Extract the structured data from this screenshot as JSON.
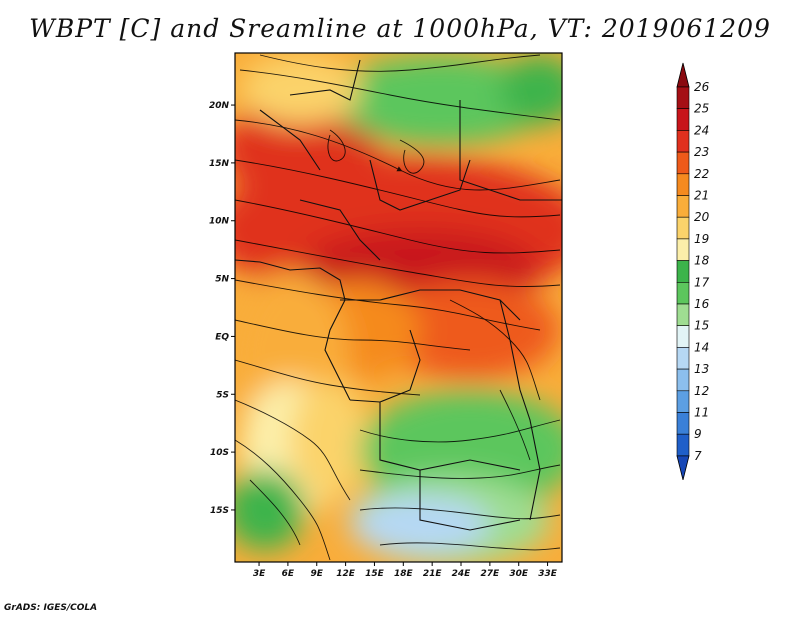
{
  "title": "WBPT [C] and Sreamline at 1000hPa, VT: 2019061209",
  "credit": "GrADS: IGES/COLA",
  "map": {
    "lat_labels": [
      "20N",
      "15N",
      "10N",
      "5N",
      "EQ",
      "5S",
      "10S",
      "15S"
    ],
    "lat_values": [
      20,
      15,
      10,
      5,
      0,
      -5,
      -10,
      -15
    ],
    "lon_labels": [
      "3E",
      "6E",
      "9E",
      "12E",
      "15E",
      "18E",
      "21E",
      "24E",
      "27E",
      "30E",
      "33E"
    ],
    "lon_values": [
      3,
      6,
      9,
      12,
      15,
      18,
      21,
      24,
      27,
      30,
      33
    ],
    "lon_range": [
      0.5,
      34.5
    ],
    "lat_range": [
      -19.5,
      24.5
    ]
  },
  "colorbar": {
    "labels": [
      "26",
      "25",
      "24",
      "23",
      "22",
      "21",
      "20",
      "19",
      "18",
      "17",
      "16",
      "15",
      "14",
      "13",
      "12",
      "11",
      "9",
      "7"
    ],
    "colors": [
      "#a50f15",
      "#c8141b",
      "#e0301e",
      "#ee5a1a",
      "#f58a1f",
      "#f9ad3a",
      "#fbd36b",
      "#fcefaa",
      "#3cb44b",
      "#5cc65d",
      "#9fdd92",
      "#e2f4f6",
      "#b6d8f4",
      "#8cbfed",
      "#5c9fe3",
      "#3a80d8",
      "#1f5fc9"
    ],
    "top_color": "#8a0a10",
    "bottom_color": "#1747b6"
  }
}
